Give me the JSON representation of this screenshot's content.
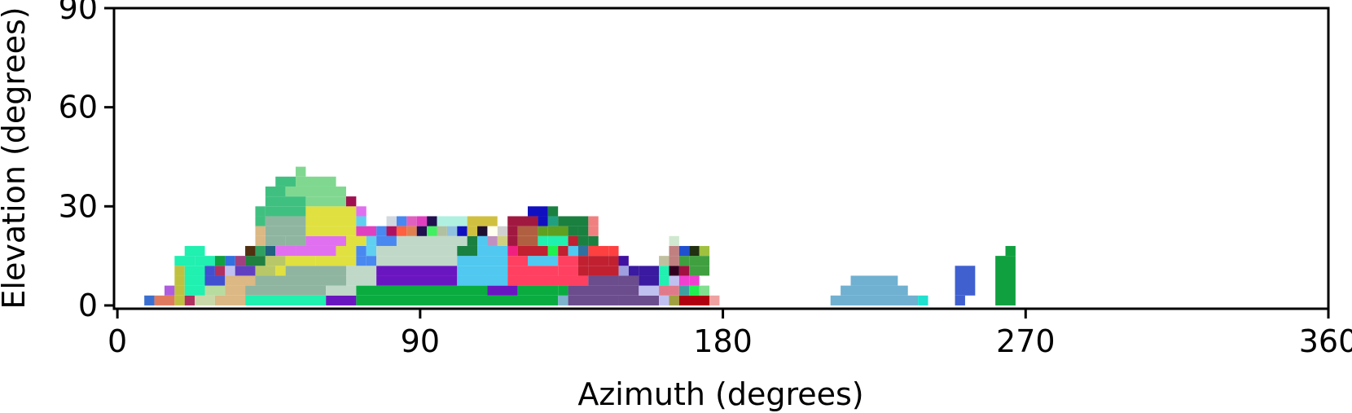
{
  "chart_data": {
    "type": "heatmap",
    "title": "",
    "xlabel": "Azimuth (degrees)",
    "ylabel": "Elevation (degrees)",
    "xlim": [
      -1,
      360
    ],
    "ylim": [
      -1,
      90
    ],
    "xticks": [
      0,
      90,
      180,
      270,
      360
    ],
    "yticks": [
      0,
      30,
      60,
      90
    ],
    "grid": false,
    "cells": [
      [
        8,
        0,
        11,
        3,
        "#3a6fd1"
      ],
      [
        11,
        0,
        17,
        3,
        "#e07a5f"
      ],
      [
        17,
        0,
        20,
        3,
        "#c0c040"
      ],
      [
        20,
        0,
        23,
        3,
        "#b03060"
      ],
      [
        23,
        0,
        29,
        3,
        "#c8d8a8"
      ],
      [
        29,
        0,
        38,
        3,
        "#dbb884"
      ],
      [
        38,
        0,
        62,
        3,
        "#20f0b0"
      ],
      [
        62,
        0,
        71,
        3,
        "#6a16c0"
      ],
      [
        71,
        0,
        131,
        3,
        "#0aac40"
      ],
      [
        131,
        0,
        134,
        3,
        "#7fb2cc"
      ],
      [
        134,
        0,
        149,
        3,
        "#6b4c8c"
      ],
      [
        149,
        0,
        161,
        3,
        "#6b4c8c"
      ],
      [
        161,
        0,
        164,
        3,
        "#c0c0f0"
      ],
      [
        164,
        0,
        167,
        3,
        "#a0a040"
      ],
      [
        167,
        0,
        176,
        3,
        "#b00010"
      ],
      [
        176,
        0,
        179,
        3,
        "#f0a0a0"
      ],
      [
        14,
        3,
        17,
        6,
        "#b05ce0"
      ],
      [
        17,
        3,
        20,
        6,
        "#c0c040"
      ],
      [
        20,
        3,
        26,
        6,
        "#20f0b0"
      ],
      [
        26,
        3,
        32,
        6,
        "#b8dca0"
      ],
      [
        32,
        3,
        38,
        6,
        "#dbb884"
      ],
      [
        38,
        3,
        62,
        6,
        "#8fb5a0"
      ],
      [
        62,
        3,
        71,
        6,
        "#c0d8c8"
      ],
      [
        71,
        3,
        110,
        6,
        "#0aac40"
      ],
      [
        110,
        3,
        119,
        6,
        "#6a16c0"
      ],
      [
        119,
        3,
        131,
        6,
        "#0aac40"
      ],
      [
        131,
        3,
        134,
        6,
        "#0aac40"
      ],
      [
        134,
        3,
        155,
        6,
        "#6b4c8c"
      ],
      [
        155,
        3,
        161,
        6,
        "#c0c0f0"
      ],
      [
        161,
        3,
        164,
        6,
        "#e07a8a"
      ],
      [
        164,
        3,
        167,
        6,
        "#e07a8a"
      ],
      [
        167,
        3,
        170,
        6,
        "#40a0a0"
      ],
      [
        170,
        3,
        173,
        6,
        "#20f050"
      ],
      [
        173,
        3,
        176,
        6,
        "#80e090"
      ],
      [
        17,
        6,
        20,
        9,
        "#c0c040"
      ],
      [
        20,
        6,
        26,
        9,
        "#20f0b0"
      ],
      [
        26,
        6,
        32,
        9,
        "#4050d0"
      ],
      [
        32,
        6,
        41,
        9,
        "#dbb884"
      ],
      [
        41,
        6,
        68,
        9,
        "#8fb5a0"
      ],
      [
        68,
        6,
        77,
        9,
        "#c0d8c8"
      ],
      [
        77,
        6,
        101,
        9,
        "#6a16c0"
      ],
      [
        101,
        6,
        116,
        9,
        "#50c8f0"
      ],
      [
        116,
        6,
        140,
        9,
        "#ff4060"
      ],
      [
        140,
        6,
        149,
        9,
        "#6b4c8c"
      ],
      [
        149,
        6,
        155,
        9,
        "#6b4c8c"
      ],
      [
        155,
        6,
        161,
        9,
        "#3a1aa0"
      ],
      [
        161,
        6,
        164,
        9,
        "#20f0b0"
      ],
      [
        164,
        6,
        167,
        9,
        "#c0c0f0"
      ],
      [
        167,
        6,
        170,
        9,
        "#f040d0"
      ],
      [
        170,
        6,
        173,
        9,
        "#f040d0"
      ],
      [
        17,
        9,
        20,
        12,
        "#c0c040"
      ],
      [
        20,
        9,
        26,
        12,
        "#20f0b0"
      ],
      [
        26,
        9,
        29,
        12,
        "#4050d0"
      ],
      [
        29,
        9,
        32,
        12,
        "#b03060"
      ],
      [
        32,
        9,
        35,
        12,
        "#c0c0f0"
      ],
      [
        35,
        9,
        41,
        12,
        "#6040c0"
      ],
      [
        41,
        9,
        47,
        12,
        "#b8c868"
      ],
      [
        47,
        9,
        50,
        12,
        "#e0e040"
      ],
      [
        50,
        9,
        68,
        12,
        "#8fb5a0"
      ],
      [
        68,
        9,
        77,
        12,
        "#c0d8c8"
      ],
      [
        77,
        9,
        101,
        12,
        "#6a16c0"
      ],
      [
        101,
        9,
        116,
        12,
        "#50c8f0"
      ],
      [
        116,
        9,
        131,
        12,
        "#ff4060"
      ],
      [
        131,
        9,
        137,
        12,
        "#ff4060"
      ],
      [
        137,
        9,
        140,
        12,
        "#c02030"
      ],
      [
        140,
        9,
        149,
        12,
        "#c02030"
      ],
      [
        149,
        9,
        152,
        12,
        "#9f9fe0"
      ],
      [
        152,
        9,
        155,
        12,
        "#3a1aa0"
      ],
      [
        155,
        9,
        161,
        12,
        "#3a1aa0"
      ],
      [
        161,
        9,
        164,
        12,
        "#20f0b0"
      ],
      [
        164,
        9,
        167,
        12,
        "#300020"
      ],
      [
        167,
        9,
        170,
        12,
        "#a01040"
      ],
      [
        170,
        9,
        176,
        12,
        "#40a040"
      ],
      [
        17,
        12,
        23,
        15,
        "#20f0b0"
      ],
      [
        23,
        12,
        29,
        15,
        "#20f0b0"
      ],
      [
        29,
        12,
        32,
        15,
        "#10a040"
      ],
      [
        32,
        12,
        35,
        15,
        "#3070e0"
      ],
      [
        35,
        12,
        38,
        15,
        "#a04080"
      ],
      [
        38,
        12,
        44,
        15,
        "#208040"
      ],
      [
        44,
        12,
        50,
        15,
        "#b8c868"
      ],
      [
        50,
        12,
        59,
        15,
        "#e0e040"
      ],
      [
        59,
        12,
        71,
        15,
        "#e0e040"
      ],
      [
        71,
        12,
        74,
        15,
        "#4888f0"
      ],
      [
        74,
        12,
        77,
        15,
        "#4888f0"
      ],
      [
        77,
        12,
        101,
        15,
        "#c0d8c8"
      ],
      [
        101,
        12,
        116,
        15,
        "#50c8f0"
      ],
      [
        116,
        12,
        122,
        15,
        "#ff4060"
      ],
      [
        122,
        12,
        131,
        15,
        "#50c8f0"
      ],
      [
        131,
        12,
        137,
        15,
        "#ff4060"
      ],
      [
        137,
        12,
        140,
        15,
        "#c02030"
      ],
      [
        140,
        12,
        146,
        15,
        "#c02030"
      ],
      [
        146,
        12,
        149,
        15,
        "#c02030"
      ],
      [
        149,
        12,
        152,
        15,
        "#4010a0"
      ],
      [
        152,
        12,
        161,
        15,
        "#ffffff"
      ],
      [
        161,
        12,
        164,
        15,
        "#c0c0a0"
      ],
      [
        164,
        12,
        167,
        15,
        "#c08080"
      ],
      [
        167,
        12,
        170,
        15,
        "#40a040"
      ],
      [
        170,
        12,
        176,
        15,
        "#40a040"
      ],
      [
        20,
        15,
        26,
        18,
        "#20f0b0"
      ],
      [
        38,
        15,
        41,
        18,
        "#503010"
      ],
      [
        41,
        15,
        44,
        18,
        "#30a060"
      ],
      [
        44,
        15,
        47,
        18,
        "#206080"
      ],
      [
        47,
        15,
        53,
        18,
        "#e070f0"
      ],
      [
        53,
        15,
        65,
        18,
        "#e070f0"
      ],
      [
        65,
        15,
        71,
        18,
        "#e0e040"
      ],
      [
        71,
        15,
        74,
        18,
        "#4888f0"
      ],
      [
        74,
        15,
        77,
        18,
        "#60d0f0"
      ],
      [
        77,
        15,
        101,
        18,
        "#c0d8c8"
      ],
      [
        101,
        15,
        107,
        18,
        "#1a8040"
      ],
      [
        107,
        15,
        116,
        18,
        "#50c8f0"
      ],
      [
        116,
        15,
        119,
        18,
        "#f02080"
      ],
      [
        119,
        15,
        122,
        18,
        "#c02030"
      ],
      [
        122,
        15,
        128,
        18,
        "#c02030"
      ],
      [
        128,
        15,
        131,
        18,
        "#20f050"
      ],
      [
        131,
        15,
        134,
        18,
        "#c02030"
      ],
      [
        134,
        15,
        137,
        18,
        "#50c8f0"
      ],
      [
        137,
        15,
        140,
        18,
        "#3070a0"
      ],
      [
        140,
        15,
        146,
        18,
        "#ff4040"
      ],
      [
        146,
        15,
        149,
        18,
        "#ff4040"
      ],
      [
        164,
        15,
        167,
        18,
        "#c08080"
      ],
      [
        167,
        15,
        170,
        18,
        "#2050d0"
      ],
      [
        170,
        15,
        173,
        18,
        "#203010"
      ],
      [
        173,
        15,
        176,
        18,
        "#a0c040"
      ],
      [
        41,
        18,
        44,
        21,
        "#dbb884"
      ],
      [
        44,
        18,
        50,
        21,
        "#8fb5a0"
      ],
      [
        50,
        18,
        56,
        21,
        "#8fb5a0"
      ],
      [
        56,
        18,
        68,
        21,
        "#e070f0"
      ],
      [
        68,
        18,
        74,
        21,
        "#e0e040"
      ],
      [
        74,
        18,
        77,
        21,
        "#60d0f0"
      ],
      [
        77,
        18,
        83,
        21,
        "#4888f0"
      ],
      [
        83,
        18,
        104,
        21,
        "#c0d8c8"
      ],
      [
        104,
        18,
        107,
        21,
        "#1a8040"
      ],
      [
        107,
        18,
        110,
        21,
        "#50c8f0"
      ],
      [
        110,
        18,
        113,
        21,
        "#c090c0"
      ],
      [
        113,
        18,
        116,
        21,
        "#d0d080"
      ],
      [
        116,
        18,
        119,
        21,
        "#a01840"
      ],
      [
        119,
        18,
        125,
        21,
        "#b06040"
      ],
      [
        125,
        18,
        128,
        21,
        "#20f0b0"
      ],
      [
        128,
        18,
        134,
        21,
        "#20f0b0"
      ],
      [
        134,
        18,
        137,
        21,
        "#c02030"
      ],
      [
        137,
        18,
        140,
        21,
        "#1a8040"
      ],
      [
        140,
        18,
        143,
        21,
        "#1a8040"
      ],
      [
        164,
        18,
        167,
        21,
        "#d0e8d0"
      ],
      [
        41,
        21,
        44,
        24,
        "#dbb884"
      ],
      [
        44,
        21,
        56,
        24,
        "#8fb5a0"
      ],
      [
        56,
        21,
        71,
        24,
        "#e0e040"
      ],
      [
        71,
        21,
        77,
        24,
        "#e040c0"
      ],
      [
        77,
        21,
        80,
        24,
        "#4888f0"
      ],
      [
        80,
        21,
        83,
        24,
        "#b01060"
      ],
      [
        83,
        21,
        86,
        24,
        "#ff6040"
      ],
      [
        86,
        21,
        89,
        24,
        "#e08050"
      ],
      [
        89,
        21,
        92,
        24,
        "#201050"
      ],
      [
        92,
        21,
        95,
        24,
        "#40f060"
      ],
      [
        95,
        21,
        98,
        24,
        "#b0c0a0"
      ],
      [
        98,
        21,
        101,
        24,
        "#90c0e0"
      ],
      [
        101,
        21,
        104,
        24,
        "#1010c0"
      ],
      [
        104,
        21,
        107,
        24,
        "#d0c040"
      ],
      [
        107,
        21,
        110,
        24,
        "#201030"
      ],
      [
        110,
        21,
        113,
        24,
        "#fffff0"
      ],
      [
        113,
        21,
        116,
        24,
        "#d0d0d0"
      ],
      [
        116,
        21,
        119,
        24,
        "#a01840"
      ],
      [
        119,
        21,
        125,
        24,
        "#b06040"
      ],
      [
        125,
        21,
        128,
        24,
        "#60a020"
      ],
      [
        128,
        21,
        134,
        24,
        "#60a020"
      ],
      [
        134,
        21,
        137,
        24,
        "#1a8040"
      ],
      [
        137,
        21,
        140,
        24,
        "#1a8040"
      ],
      [
        140,
        21,
        143,
        24,
        "#f08080"
      ],
      [
        41,
        24,
        44,
        27,
        "#40c080"
      ],
      [
        44,
        24,
        56,
        27,
        "#8fb5a0"
      ],
      [
        56,
        24,
        71,
        27,
        "#e0e040"
      ],
      [
        71,
        24,
        74,
        27,
        "#60d0f0"
      ],
      [
        80,
        24,
        83,
        27,
        "#d0d8e0"
      ],
      [
        83,
        24,
        86,
        27,
        "#4888f0"
      ],
      [
        86,
        24,
        89,
        27,
        "#e060c0"
      ],
      [
        89,
        24,
        92,
        27,
        "#e040c0"
      ],
      [
        92,
        24,
        95,
        27,
        "#201050"
      ],
      [
        95,
        24,
        104,
        27,
        "#b0f0e0"
      ],
      [
        104,
        24,
        113,
        27,
        "#d0c040"
      ],
      [
        113,
        24,
        116,
        27,
        "#ffffff"
      ],
      [
        116,
        24,
        125,
        27,
        "#a01840"
      ],
      [
        125,
        24,
        128,
        27,
        "#1010c0"
      ],
      [
        128,
        24,
        131,
        27,
        "#20a080"
      ],
      [
        131,
        24,
        140,
        27,
        "#1a8040"
      ],
      [
        140,
        24,
        143,
        27,
        "#f08080"
      ],
      [
        41,
        27,
        44,
        30,
        "#40c080"
      ],
      [
        44,
        27,
        56,
        30,
        "#40c080"
      ],
      [
        56,
        27,
        71,
        30,
        "#e0e040"
      ],
      [
        71,
        27,
        74,
        30,
        "#e070f0"
      ],
      [
        122,
        27,
        128,
        30,
        "#1010c0"
      ],
      [
        128,
        27,
        131,
        30,
        "#1a8040"
      ],
      [
        44,
        30,
        56,
        33,
        "#40c080"
      ],
      [
        56,
        30,
        68,
        33,
        "#80d890"
      ],
      [
        68,
        30,
        71,
        33,
        "#a01050"
      ],
      [
        44,
        33,
        50,
        36,
        "#40c080"
      ],
      [
        50,
        33,
        68,
        36,
        "#80d890"
      ],
      [
        47,
        36,
        53,
        39,
        "#40c080"
      ],
      [
        53,
        36,
        65,
        39,
        "#80d890"
      ],
      [
        53,
        39,
        56,
        42,
        "#80d890"
      ],
      [
        212,
        0,
        238,
        3,
        "#70b0d0"
      ],
      [
        238,
        0,
        241,
        3,
        "#20e0d0"
      ],
      [
        215,
        3,
        235,
        6,
        "#70b0d0"
      ],
      [
        218,
        6,
        232,
        9,
        "#70b0d0"
      ],
      [
        249,
        0,
        252,
        3,
        "#4060d0"
      ],
      [
        249,
        3,
        255,
        12,
        "#4060d0"
      ],
      [
        261,
        0,
        267,
        15,
        "#10a040"
      ],
      [
        264,
        15,
        267,
        18,
        "#10a040"
      ]
    ]
  }
}
